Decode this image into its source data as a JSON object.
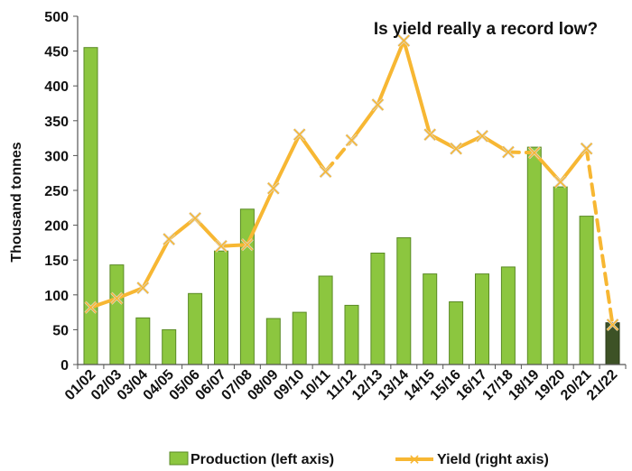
{
  "chart_data": {
    "type": "bar",
    "title": "Is yield really a record low?",
    "ylabel": "Thousand tonnes",
    "xlabel": "",
    "ylim": [
      0,
      500
    ],
    "yticks": [
      0,
      50,
      100,
      150,
      200,
      250,
      300,
      350,
      400,
      450,
      500
    ],
    "grid": false,
    "legend_placement": "bottom",
    "categories": [
      "01/02",
      "02/03",
      "03/04",
      "04/05",
      "05/06",
      "06/07",
      "07/08",
      "08/09",
      "09/10",
      "10/11",
      "11/12",
      "12/13",
      "13/14",
      "14/15",
      "15/16",
      "16/17",
      "17/18",
      "18/19",
      "19/20",
      "20/21",
      "21/22"
    ],
    "series": [
      {
        "name": "Production (left axis)",
        "type": "bar",
        "color": "#8cc63f",
        "highlight_last_color": "#3d5226",
        "values": [
          455,
          143,
          67,
          50,
          102,
          163,
          223,
          66,
          75,
          127,
          85,
          160,
          182,
          130,
          90,
          130,
          140,
          312,
          255,
          213,
          60
        ]
      },
      {
        "name": "Yield (right axis)",
        "type": "line",
        "color": "#f7b733",
        "dashed_segments": [
          [
            9,
            10
          ],
          [
            16,
            17
          ],
          [
            19,
            20
          ]
        ],
        "values": [
          82,
          95,
          110,
          180,
          210,
          170,
          172,
          253,
          330,
          277,
          322,
          373,
          465,
          330,
          310,
          328,
          305,
          304,
          262,
          310,
          57
        ]
      }
    ]
  }
}
